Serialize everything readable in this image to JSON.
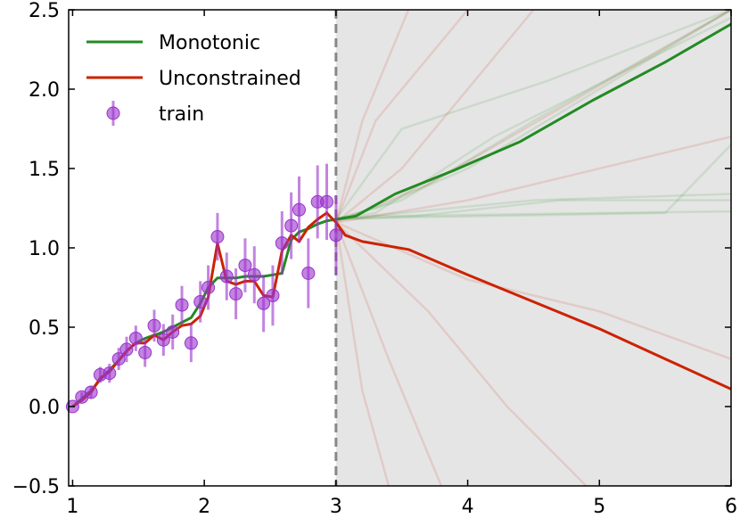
{
  "chart_data": {
    "type": "line",
    "title": "",
    "xlabel": "",
    "ylabel": "",
    "xlim": [
      0.97,
      6.0
    ],
    "ylim": [
      -0.5,
      2.5
    ],
    "grid": false,
    "legend_position": "top-left",
    "boundary_x": 3.0,
    "extrapolation_shaded": true,
    "colors": {
      "monotonic": "#228B22",
      "unconstrained": "#CC2200",
      "train": "#9932CC",
      "shade": "#e5e5e5",
      "boundary": "#888888"
    },
    "x_ticks": [
      {
        "value": 1,
        "label": "1"
      },
      {
        "value": 2,
        "label": "2"
      },
      {
        "value": 3,
        "label": "3"
      },
      {
        "value": 4,
        "label": "4"
      },
      {
        "value": 5,
        "label": "5"
      },
      {
        "value": 6,
        "label": "6"
      }
    ],
    "y_ticks": [
      {
        "value": -0.5,
        "label": "−0.5"
      },
      {
        "value": 0.0,
        "label": "0.0"
      },
      {
        "value": 0.5,
        "label": "0.5"
      },
      {
        "value": 1.0,
        "label": "1.0"
      },
      {
        "value": 1.5,
        "label": "1.5"
      },
      {
        "value": 2.0,
        "label": "2.0"
      },
      {
        "value": 2.5,
        "label": "2.5"
      }
    ],
    "legend": [
      {
        "key": "monotonic",
        "label": "Monotonic",
        "kind": "line"
      },
      {
        "key": "unconstrained",
        "label": "Unconstrained",
        "kind": "line"
      },
      {
        "key": "train",
        "label": "train",
        "kind": "point"
      }
    ],
    "train": [
      {
        "x": 1.0,
        "y": 0.0,
        "err": 0.0
      },
      {
        "x": 1.07,
        "y": 0.06,
        "err": 0.03
      },
      {
        "x": 1.14,
        "y": 0.09,
        "err": 0.04
      },
      {
        "x": 1.21,
        "y": 0.2,
        "err": 0.05
      },
      {
        "x": 1.28,
        "y": 0.21,
        "err": 0.06
      },
      {
        "x": 1.35,
        "y": 0.3,
        "err": 0.07
      },
      {
        "x": 1.41,
        "y": 0.36,
        "err": 0.08
      },
      {
        "x": 1.48,
        "y": 0.43,
        "err": 0.08
      },
      {
        "x": 1.55,
        "y": 0.34,
        "err": 0.09
      },
      {
        "x": 1.62,
        "y": 0.51,
        "err": 0.1
      },
      {
        "x": 1.69,
        "y": 0.42,
        "err": 0.1
      },
      {
        "x": 1.76,
        "y": 0.47,
        "err": 0.11
      },
      {
        "x": 1.83,
        "y": 0.64,
        "err": 0.12
      },
      {
        "x": 1.9,
        "y": 0.4,
        "err": 0.12
      },
      {
        "x": 1.97,
        "y": 0.66,
        "err": 0.13
      },
      {
        "x": 2.03,
        "y": 0.75,
        "err": 0.14
      },
      {
        "x": 2.1,
        "y": 1.07,
        "err": 0.15
      },
      {
        "x": 2.17,
        "y": 0.82,
        "err": 0.15
      },
      {
        "x": 2.24,
        "y": 0.71,
        "err": 0.16
      },
      {
        "x": 2.31,
        "y": 0.89,
        "err": 0.17
      },
      {
        "x": 2.38,
        "y": 0.83,
        "err": 0.18
      },
      {
        "x": 2.45,
        "y": 0.65,
        "err": 0.18
      },
      {
        "x": 2.52,
        "y": 0.7,
        "err": 0.19
      },
      {
        "x": 2.59,
        "y": 1.03,
        "err": 0.2
      },
      {
        "x": 2.66,
        "y": 1.14,
        "err": 0.21
      },
      {
        "x": 2.72,
        "y": 1.24,
        "err": 0.21
      },
      {
        "x": 2.79,
        "y": 0.84,
        "err": 0.22
      },
      {
        "x": 2.86,
        "y": 1.29,
        "err": 0.23
      },
      {
        "x": 2.93,
        "y": 1.29,
        "err": 0.24
      },
      {
        "x": 3.0,
        "y": 1.08,
        "err": 0.25
      }
    ],
    "series": [
      {
        "key": "monotonic",
        "name": "Monotonic",
        "x": [
          1.0,
          1.07,
          1.14,
          1.21,
          1.28,
          1.35,
          1.41,
          1.48,
          1.55,
          1.62,
          1.69,
          1.76,
          1.83,
          1.9,
          1.97,
          2.03,
          2.1,
          2.17,
          2.24,
          2.31,
          2.38,
          2.45,
          2.52,
          2.59,
          2.66,
          2.72,
          2.79,
          2.86,
          2.93,
          3.0,
          3.15,
          3.45,
          3.9,
          4.4,
          4.95,
          5.5,
          6.0
        ],
        "y": [
          0.0,
          0.05,
          0.1,
          0.17,
          0.23,
          0.29,
          0.35,
          0.4,
          0.43,
          0.45,
          0.47,
          0.5,
          0.53,
          0.56,
          0.65,
          0.75,
          0.81,
          0.81,
          0.81,
          0.82,
          0.82,
          0.82,
          0.83,
          0.84,
          1.05,
          1.1,
          1.12,
          1.15,
          1.17,
          1.18,
          1.2,
          1.34,
          1.49,
          1.67,
          1.93,
          2.17,
          2.41
        ]
      },
      {
        "key": "unconstrained",
        "name": "Unconstrained",
        "x": [
          1.0,
          1.07,
          1.14,
          1.21,
          1.28,
          1.35,
          1.41,
          1.48,
          1.55,
          1.62,
          1.69,
          1.76,
          1.83,
          1.9,
          1.97,
          2.03,
          2.1,
          2.17,
          2.24,
          2.31,
          2.38,
          2.45,
          2.52,
          2.59,
          2.66,
          2.72,
          2.79,
          2.86,
          2.93,
          3.0,
          3.07,
          3.2,
          3.55,
          4.0,
          4.5,
          5.0,
          5.5,
          6.0
        ],
        "y": [
          0.0,
          0.04,
          0.09,
          0.18,
          0.22,
          0.29,
          0.35,
          0.4,
          0.4,
          0.45,
          0.42,
          0.47,
          0.51,
          0.52,
          0.57,
          0.69,
          1.03,
          0.79,
          0.77,
          0.79,
          0.79,
          0.7,
          0.69,
          0.98,
          1.08,
          1.04,
          1.13,
          1.18,
          1.22,
          1.16,
          1.08,
          1.04,
          0.99,
          0.83,
          0.66,
          0.49,
          0.3,
          0.11
        ]
      }
    ],
    "faint_monotonic_samples": [
      {
        "x": [
          3.0,
          3.3,
          4.0,
          6.0
        ],
        "y": [
          1.18,
          1.25,
          1.5,
          2.5
        ]
      },
      {
        "x": [
          3.0,
          3.3,
          4.2,
          6.0
        ],
        "y": [
          1.18,
          1.22,
          1.7,
          2.45
        ]
      },
      {
        "x": [
          3.0,
          3.5,
          4.5,
          6.0
        ],
        "y": [
          1.18,
          1.3,
          1.8,
          2.5
        ]
      },
      {
        "x": [
          3.0,
          3.5,
          4.6,
          6.0
        ],
        "y": [
          1.18,
          1.75,
          2.05,
          2.5
        ]
      },
      {
        "x": [
          3.0,
          3.5,
          4.5,
          6.0
        ],
        "y": [
          1.18,
          1.22,
          1.3,
          1.34
        ]
      },
      {
        "x": [
          3.0,
          3.6,
          4.7,
          6.0
        ],
        "y": [
          1.18,
          1.2,
          1.3,
          1.3
        ]
      },
      {
        "x": [
          3.0,
          3.4,
          5.5,
          6.0
        ],
        "y": [
          1.18,
          1.19,
          1.22,
          1.65
        ]
      },
      {
        "x": [
          3.0,
          3.3,
          6.0
        ],
        "y": [
          1.18,
          1.2,
          1.23
        ]
      }
    ],
    "faint_unconstrained_samples": [
      {
        "x": [
          3.0,
          3.2,
          3.55
        ],
        "y": [
          1.16,
          1.8,
          2.5
        ]
      },
      {
        "x": [
          3.0,
          3.3,
          4.0
        ],
        "y": [
          1.16,
          1.8,
          2.5
        ]
      },
      {
        "x": [
          3.0,
          3.5,
          4.5
        ],
        "y": [
          1.16,
          1.5,
          2.5
        ]
      },
      {
        "x": [
          3.0,
          3.7,
          6.0
        ],
        "y": [
          1.16,
          1.4,
          2.5
        ]
      },
      {
        "x": [
          3.0,
          4.0,
          6.0
        ],
        "y": [
          1.16,
          1.3,
          1.7
        ]
      },
      {
        "x": [
          3.0,
          3.2,
          3.4
        ],
        "y": [
          1.16,
          0.1,
          -0.5
        ]
      },
      {
        "x": [
          3.0,
          3.4,
          3.8
        ],
        "y": [
          1.16,
          0.3,
          -0.5
        ]
      },
      {
        "x": [
          3.0,
          3.7,
          4.3,
          4.9
        ],
        "y": [
          1.16,
          0.6,
          0.0,
          -0.5
        ]
      },
      {
        "x": [
          3.0,
          4.0,
          5.0,
          6.0
        ],
        "y": [
          1.16,
          0.8,
          0.6,
          0.3
        ]
      }
    ]
  }
}
